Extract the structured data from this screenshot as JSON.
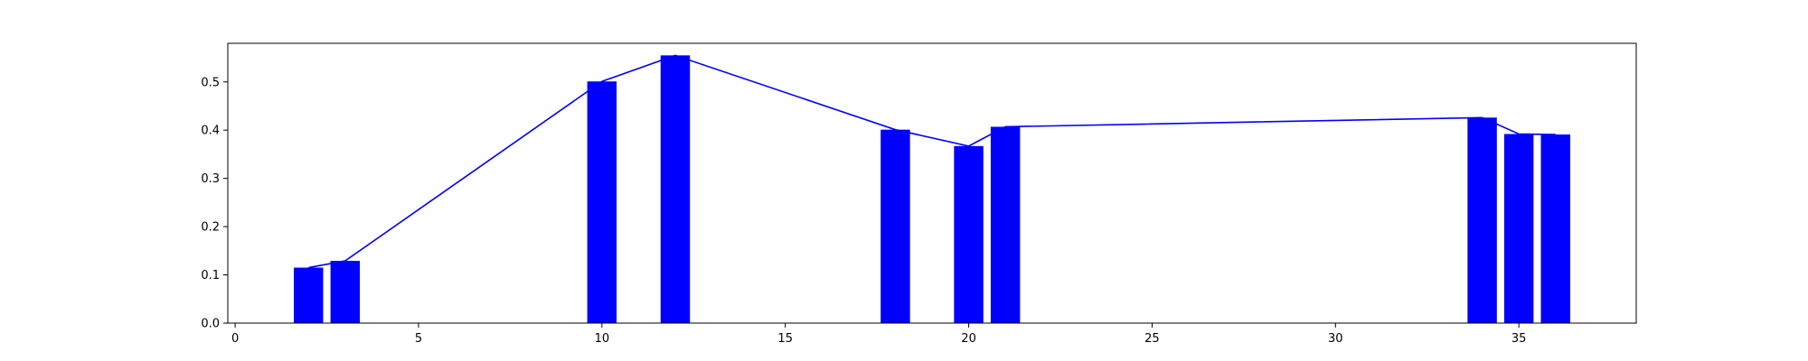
{
  "chart_data": {
    "type": "bar",
    "x": [
      2,
      3,
      10,
      12,
      18,
      20,
      21,
      34,
      35,
      36
    ],
    "values": [
      0.115,
      0.129,
      0.501,
      0.555,
      0.401,
      0.367,
      0.407,
      0.426,
      0.392,
      0.391
    ],
    "overlay": {
      "type": "line",
      "x": [
        2,
        3,
        10,
        12,
        18,
        20,
        21,
        34,
        35,
        36
      ],
      "values": [
        0.115,
        0.129,
        0.501,
        0.555,
        0.401,
        0.367,
        0.407,
        0.426,
        0.392,
        0.391
      ]
    },
    "bar_width": 0.8,
    "xlim": [
      -0.2,
      38.2
    ],
    "ylim": [
      0,
      0.58
    ],
    "xticks": [
      0,
      5,
      10,
      15,
      20,
      25,
      30,
      35
    ],
    "yticks": [
      0.0,
      0.1,
      0.2,
      0.3,
      0.4,
      0.5
    ],
    "xtick_labels": [
      "0",
      "5",
      "10",
      "15",
      "20",
      "25",
      "30",
      "35"
    ],
    "ytick_labels": [
      "0.0",
      "0.1",
      "0.2",
      "0.3",
      "0.4",
      "0.5"
    ],
    "title": "",
    "xlabel": "",
    "ylabel": "",
    "grid": false,
    "colors": {
      "bar": "#0000ff",
      "line": "#0000ff",
      "axes": "#000000"
    }
  }
}
